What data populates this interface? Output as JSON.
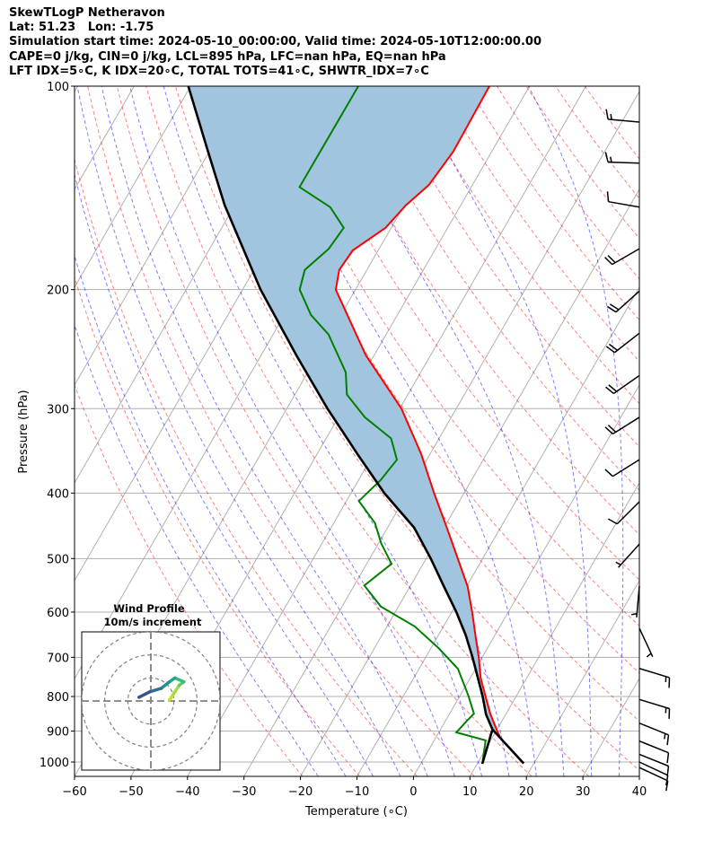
{
  "title": {
    "line1": "SkewTLogP Netheravon",
    "line2": "Lat: 51.23   Lon: -1.75",
    "line3": "Simulation start time: 2024-05-10_00:00:00, Valid time: 2024-05-10T12:00:00.00",
    "line4": "CAPE=0 j/kg, CIN=0 j/kg, LCL=895 hPa, LFC=nan hPa, EQ=nan hPa",
    "line5": "LFT IDX=5∘C, K IDX=20∘C, TOTAL TOTS=41∘C, SHWTR_IDX=7∘C"
  },
  "chart_data": {
    "type": "skewt",
    "xlabel": "Temperature (∘C)",
    "ylabel": "Pressure (hPa)",
    "xlim": [
      -60,
      40
    ],
    "ylim": [
      1050,
      100
    ],
    "xticks": [
      -60,
      -50,
      -40,
      -30,
      -20,
      -10,
      0,
      10,
      20,
      30,
      40
    ],
    "xtick_labels": [
      "−60",
      "−50",
      "−40",
      "−30",
      "−20",
      "−10",
      "0",
      "10",
      "20",
      "30",
      "40"
    ],
    "yticks": [
      100,
      200,
      300,
      400,
      500,
      600,
      700,
      800,
      900,
      1000
    ],
    "ytick_labels": [
      "100",
      "200",
      "300",
      "400",
      "500",
      "600",
      "700",
      "800",
      "900",
      "1000"
    ],
    "grid": true,
    "lcl_hpa": 895,
    "temperature": {
      "color": "#ff0000",
      "p": [
        1005,
        950,
        925,
        900,
        850,
        800,
        750,
        700,
        650,
        600,
        550,
        500,
        450,
        400,
        350,
        300,
        250,
        200,
        187,
        175,
        162,
        150,
        140,
        125,
        100
      ],
      "T": [
        18.2,
        13.9,
        11.7,
        10.2,
        7.3,
        4.6,
        1.8,
        -0.6,
        -3.4,
        -6.4,
        -9.8,
        -14.4,
        -19.5,
        -25.3,
        -31.6,
        -39.7,
        -51.5,
        -63.5,
        -64.9,
        -64.5,
        -61.0,
        -59.7,
        -57.7,
        -56.8,
        -57.1
      ]
    },
    "dewpoint": {
      "color": "#008000",
      "p": [
        1006,
        929,
        904,
        869,
        848,
        798,
        728,
        678,
        630,
        589,
        548,
        509,
        474,
        443,
        411,
        383,
        357,
        332,
        309,
        286,
        265,
        233,
        218,
        200,
        187,
        174,
        162,
        151,
        141,
        100
      ],
      "T": [
        10.9,
        9.1,
        3.1,
        3.8,
        4.3,
        1.5,
        -3.1,
        -8.7,
        -15.1,
        -23.1,
        -28.2,
        -25.6,
        -29.6,
        -32.7,
        -37.8,
        -36.1,
        -35.3,
        -38.5,
        -45.3,
        -50.8,
        -53.3,
        -60.2,
        -65.3,
        -69.9,
        -71.0,
        -68.9,
        -68.4,
        -72.9,
        -80.4,
        -80.3
      ]
    },
    "parcel": {
      "color": "#000000",
      "p": [
        1005,
        895,
        850,
        800,
        750,
        700,
        650,
        600,
        550,
        500,
        450,
        400,
        350,
        300,
        250,
        200,
        150,
        125,
        100
      ],
      "T": [
        18.2,
        9.2,
        6.5,
        4.1,
        1.3,
        -1.7,
        -5.1,
        -9.2,
        -14.0,
        -19.2,
        -25.3,
        -34.1,
        -42.9,
        -52.8,
        -63.8,
        -76.8,
        -91.8,
        -100.2,
        -110.4
      ]
    },
    "lcl_line": {
      "p": [
        1006,
        895
      ],
      "T": [
        10.9,
        9.2
      ]
    },
    "cin_fill_color": "#a1c5de",
    "dry_adiabats_theta_K": [
      250,
      260,
      270,
      280,
      290,
      300,
      310,
      320,
      330,
      340,
      350,
      360,
      370,
      380,
      390,
      400,
      410,
      420,
      430,
      440,
      450
    ],
    "moist_adiabats_T1000_C": [
      -20,
      -15,
      -10,
      -5,
      0,
      5,
      10,
      15,
      20,
      25,
      30,
      35
    ],
    "wind_barbs": [
      {
        "p": 113,
        "dir": 275,
        "kt": 15
      },
      {
        "p": 130,
        "dir": 272,
        "kt": 15
      },
      {
        "p": 151,
        "dir": 280,
        "kt": 10
      },
      {
        "p": 174,
        "dir": 240,
        "kt": 20
      },
      {
        "p": 201,
        "dir": 228,
        "kt": 20
      },
      {
        "p": 232,
        "dir": 232,
        "kt": 20
      },
      {
        "p": 268,
        "dir": 235,
        "kt": 20
      },
      {
        "p": 309,
        "dir": 238,
        "kt": 20
      },
      {
        "p": 357,
        "dir": 238,
        "kt": 10
      },
      {
        "p": 412,
        "dir": 225,
        "kt": 10
      },
      {
        "p": 476,
        "dir": 222,
        "kt": 5
      },
      {
        "p": 549,
        "dir": 185,
        "kt": 5
      },
      {
        "p": 634,
        "dir": 155,
        "kt": 5
      },
      {
        "p": 727,
        "dir": 107,
        "kt": 15
      },
      {
        "p": 808,
        "dir": 107,
        "kt": 15
      },
      {
        "p": 876,
        "dir": 112,
        "kt": 15
      },
      {
        "p": 931,
        "dir": 112,
        "kt": 10
      },
      {
        "p": 974,
        "dir": 112,
        "kt": 10
      },
      {
        "p": 1000,
        "dir": 115,
        "kt": 10
      },
      {
        "p": 1019,
        "dir": 115,
        "kt": 10
      }
    ],
    "hodograph": {
      "title": "Wind Profile",
      "subtitle": "10m/s increment",
      "rings_ms": [
        10,
        20,
        30
      ],
      "u": [
        8.0,
        9.7,
        12.3,
        14.3,
        10.4,
        7.8,
        4.5,
        -0.6,
        -5.2
      ],
      "v": [
        0.3,
        2.9,
        6.8,
        8.3,
        10.0,
        8.1,
        5.5,
        3.9,
        1.6
      ],
      "colors": [
        "#c8e020",
        "#a5db36",
        "#5ec962",
        "#3bbb75",
        "#22a884",
        "#21918c",
        "#2c728e",
        "#3b528b",
        "#472d7b"
      ]
    }
  }
}
